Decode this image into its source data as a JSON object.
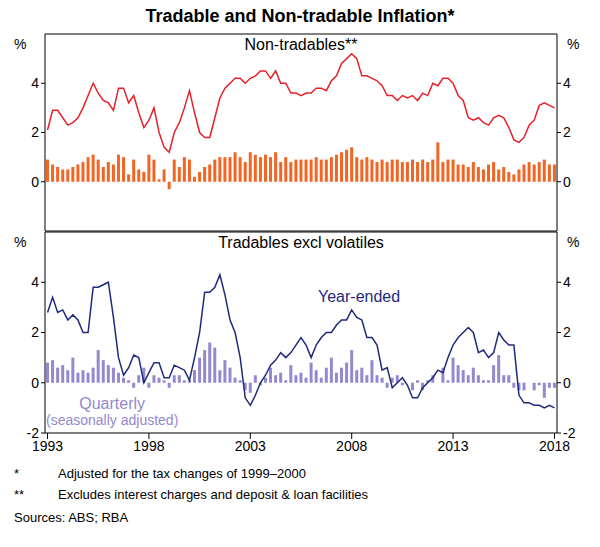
{
  "title": "Tradable and Non-tradable Inflation*",
  "notes": [
    {
      "mark": "*",
      "text": "Adjusted for the tax changes of 1999–2000"
    },
    {
      "mark": "**",
      "text": "Excludes interest charges and deposit & loan facilities"
    }
  ],
  "source": "Sources: ABS; RBA",
  "chart_data": [
    {
      "type": "combo",
      "title": "Non-tradables**",
      "ylabel": "%",
      "ylim": [
        -2,
        6
      ],
      "yticks": [
        0,
        2,
        4
      ],
      "tick_labels": "y",
      "categories": [
        "1993",
        null,
        null,
        null,
        null,
        null,
        null,
        null,
        null,
        null,
        null,
        null,
        null,
        null,
        null,
        null,
        null,
        null,
        null,
        null,
        "1998",
        null,
        null,
        null,
        null,
        null,
        null,
        null,
        null,
        null,
        null,
        null,
        null,
        null,
        null,
        null,
        null,
        null,
        null,
        null,
        "2003",
        null,
        null,
        null,
        null,
        null,
        null,
        null,
        null,
        null,
        null,
        null,
        null,
        null,
        null,
        null,
        null,
        null,
        null,
        null,
        "2008",
        null,
        null,
        null,
        null,
        null,
        null,
        null,
        null,
        null,
        null,
        null,
        null,
        null,
        null,
        null,
        null,
        null,
        null,
        null,
        "2013",
        null,
        null,
        null,
        null,
        null,
        null,
        null,
        null,
        null,
        null,
        null,
        null,
        null,
        null,
        null,
        null,
        null,
        null,
        null,
        "2018"
      ],
      "series": [
        {
          "type": "bar",
          "color": "#f26522",
          "values": [
            0.9,
            0.7,
            0.6,
            0.5,
            0.5,
            0.6,
            0.7,
            0.8,
            1.0,
            1.1,
            0.9,
            0.6,
            0.8,
            0.7,
            1.1,
            1.0,
            0.3,
            0.9,
            0.5,
            0.4,
            1.1,
            0.9,
            0.1,
            0.5,
            -0.3,
            0.9,
            0.6,
            1.0,
            0.9,
            0.2,
            0.4,
            0.6,
            0.7,
            0.9,
            1.0,
            1.0,
            1.0,
            1.2,
            1.0,
            0.8,
            1.2,
            1.1,
            1.0,
            1.1,
            1.0,
            1.2,
            0.8,
            1.0,
            0.8,
            0.9,
            0.9,
            0.9,
            0.9,
            1.0,
            0.9,
            0.9,
            1.0,
            1.1,
            1.2,
            1.3,
            1.4,
            1.0,
            0.9,
            1.0,
            0.9,
            0.8,
            0.9,
            0.8,
            0.9,
            0.9,
            0.8,
            0.8,
            0.9,
            0.8,
            0.9,
            0.8,
            0.9,
            1.6,
            0.8,
            0.9,
            0.9,
            0.7,
            0.7,
            0.6,
            0.8,
            0.6,
            0.5,
            0.7,
            0.8,
            0.5,
            0.6,
            0.4,
            0.3,
            0.5,
            0.7,
            0.8,
            0.7,
            0.8,
            0.9,
            0.7,
            0.7
          ]
        },
        {
          "type": "line",
          "color": "#e8202a",
          "values": [
            2.1,
            2.9,
            2.9,
            2.6,
            2.3,
            2.4,
            2.6,
            3.0,
            3.5,
            4.0,
            3.6,
            3.3,
            3.2,
            2.9,
            3.8,
            3.8,
            3.2,
            3.5,
            2.8,
            2.2,
            2.5,
            3.0,
            2.0,
            1.4,
            1.2,
            2.0,
            2.4,
            3.0,
            3.7,
            2.8,
            2.0,
            1.8,
            1.8,
            2.6,
            3.4,
            3.8,
            4.0,
            4.2,
            4.2,
            4.0,
            4.2,
            4.3,
            4.5,
            4.5,
            4.2,
            4.5,
            4.0,
            4.0,
            3.6,
            3.6,
            3.5,
            3.6,
            3.6,
            3.8,
            3.8,
            3.7,
            4.1,
            4.3,
            4.8,
            5.0,
            5.2,
            5.0,
            4.3,
            4.3,
            4.2,
            4.1,
            3.9,
            3.5,
            3.5,
            3.3,
            3.5,
            3.4,
            3.5,
            3.3,
            3.6,
            3.5,
            4.0,
            3.9,
            4.2,
            4.2,
            4.0,
            3.5,
            3.3,
            2.6,
            2.5,
            2.6,
            2.4,
            2.3,
            2.6,
            2.7,
            2.6,
            2.2,
            1.7,
            1.6,
            1.8,
            2.3,
            2.5,
            3.1,
            3.2,
            3.1,
            3.0
          ]
        }
      ]
    },
    {
      "type": "combo",
      "title": "Tradables excl volatiles",
      "ylabel": "%",
      "ylim": [
        -2,
        6
      ],
      "yticks": [
        -2,
        0,
        2,
        4
      ],
      "categories": [
        "1993",
        null,
        null,
        null,
        null,
        null,
        null,
        null,
        null,
        null,
        null,
        null,
        null,
        null,
        null,
        null,
        null,
        null,
        null,
        null,
        "1998",
        null,
        null,
        null,
        null,
        null,
        null,
        null,
        null,
        null,
        null,
        null,
        null,
        null,
        null,
        null,
        null,
        null,
        null,
        null,
        "2003",
        null,
        null,
        null,
        null,
        null,
        null,
        null,
        null,
        null,
        null,
        null,
        null,
        null,
        null,
        null,
        null,
        null,
        null,
        null,
        "2008",
        null,
        null,
        null,
        null,
        null,
        null,
        null,
        null,
        null,
        null,
        null,
        null,
        null,
        null,
        null,
        null,
        null,
        null,
        null,
        "2013",
        null,
        null,
        null,
        null,
        null,
        null,
        null,
        null,
        null,
        null,
        null,
        null,
        null,
        null,
        null,
        null,
        null,
        null,
        null,
        "2018"
      ],
      "series": [
        {
          "type": "line",
          "name": "Year-ended",
          "color": "#1f2a7c",
          "values": [
            2.8,
            3.4,
            2.8,
            2.9,
            2.5,
            2.7,
            2.5,
            2.0,
            2.0,
            3.8,
            3.8,
            3.9,
            4.0,
            2.6,
            1.0,
            0.3,
            0.6,
            1.1,
            1.0,
            0,
            0.4,
            0.8,
            0.8,
            0.2,
            0.2,
            0.7,
            0.6,
            0.5,
            0.1,
            1.0,
            2.0,
            3.6,
            3.6,
            3.8,
            4.3,
            3.5,
            2.5,
            2.0,
            1.0,
            -0.6,
            -0.9,
            -0.5,
            0,
            0.3,
            0.7,
            0.9,
            1.2,
            1.0,
            1.2,
            1.5,
            1.8,
            1.5,
            1.0,
            1.5,
            1.8,
            2.0,
            2.0,
            2.3,
            2.5,
            2.5,
            2.9,
            2.6,
            2.5,
            1.8,
            1.8,
            1.5,
            0.5,
            0.6,
            -0.2,
            0,
            0.2,
            -0.1,
            -0.6,
            -0.6,
            -0.2,
            0,
            0.2,
            0.5,
            0.4,
            1.0,
            1.5,
            1.8,
            2.0,
            2.2,
            2.0,
            1.2,
            1.3,
            1.0,
            1.2,
            2.0,
            1.7,
            1.5,
            1.5,
            -0.5,
            -0.8,
            -0.8,
            -0.9,
            -0.9,
            -1.0,
            -0.9,
            -1.0
          ]
        },
        {
          "type": "bar",
          "name": "Quarterly (seasonally adjusted)",
          "color": "#9488cf",
          "values": [
            0.8,
            0.9,
            0.6,
            0.7,
            0.5,
            1.0,
            0.4,
            0.5,
            0.4,
            0.6,
            1.3,
            0.9,
            0.7,
            0.6,
            0.4,
            0.2,
            0.1,
            -0.2,
            0.3,
            0.6,
            -0.2,
            0.3,
            0.2,
            0.1,
            -0.2,
            0.3,
            0.3,
            0.1,
            0.1,
            0.5,
            1.0,
            1.3,
            1.6,
            1.4,
            0.5,
            0.9,
            0.6,
            0.2,
            0.1,
            -0.3,
            -0.4,
            0.3,
            -0.1,
            0.2,
            0.6,
            0.3,
            0.4,
            0.1,
            0.7,
            0.3,
            0.4,
            0.2,
            0.8,
            0.5,
            0.2,
            0.6,
            1.0,
            0.4,
            0.6,
            0.8,
            1.3,
            0.5,
            0.6,
            0.3,
            0.9,
            0.3,
            0.2,
            -0.2,
            0.2,
            0.3,
            -0.1,
            0,
            -0.3,
            0.1,
            -0.3,
            0.1,
            0.3,
            0,
            0.6,
            0.1,
            1.0,
            0.7,
            0.5,
            0.3,
            0.6,
            0.3,
            0.1,
            0.1,
            0.7,
            1.1,
            0.3,
            0.3,
            -0.2,
            -0.3,
            -0.3,
            0,
            -0.3,
            -0.1,
            -0.6,
            -0.2,
            -0.2
          ]
        }
      ]
    }
  ]
}
